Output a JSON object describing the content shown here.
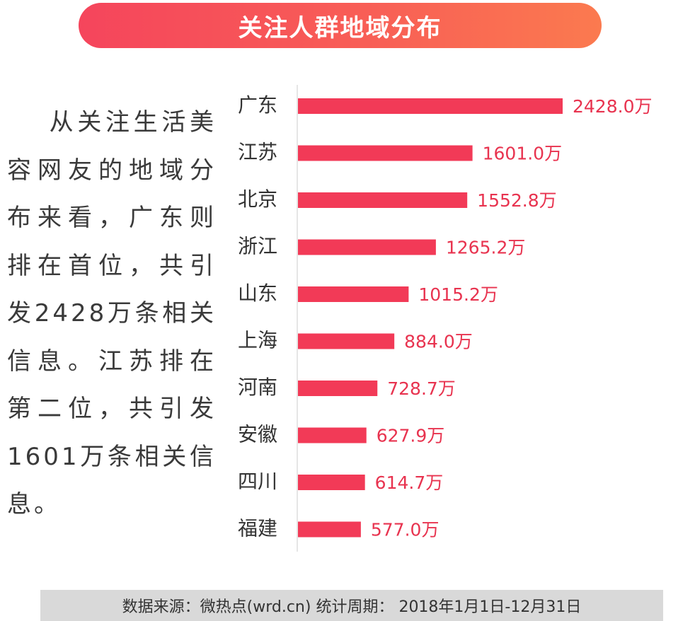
{
  "header": {
    "title": "关注人群地域分布"
  },
  "description": {
    "text": "从关注生活美容网友的地域分布来看，广东则排在首位，共引发2428万条相关信息。江苏排在第二位，共引发1601万条相关信息。"
  },
  "footer": {
    "source": "数据来源：微热点(wrd.cn)  统计周期：  2018年1月1日-12月31日"
  },
  "colors": {
    "bar": "#f23a57",
    "value_label": "#e8334f",
    "category_label": "#333333",
    "axis": "#cccccc"
  },
  "chart_data": {
    "type": "bar",
    "orientation": "horizontal",
    "title": "关注人群地域分布",
    "categories": [
      "广东",
      "江苏",
      "北京",
      "浙江",
      "山东",
      "上海",
      "河南",
      "安徽",
      "四川",
      "福建"
    ],
    "values": [
      2428.0,
      1601.0,
      1552.8,
      1265.2,
      1015.2,
      884.0,
      728.7,
      627.9,
      614.7,
      577.0
    ],
    "value_labels": [
      "2428.0万",
      "1601.0万",
      "1552.8万",
      "1265.2万",
      "1015.2万",
      "884.0万",
      "728.7万",
      "627.9万",
      "614.7万",
      "577.0万"
    ],
    "unit": "万",
    "xlim": [
      0,
      2428.0
    ],
    "grid": false,
    "legend": "none"
  }
}
